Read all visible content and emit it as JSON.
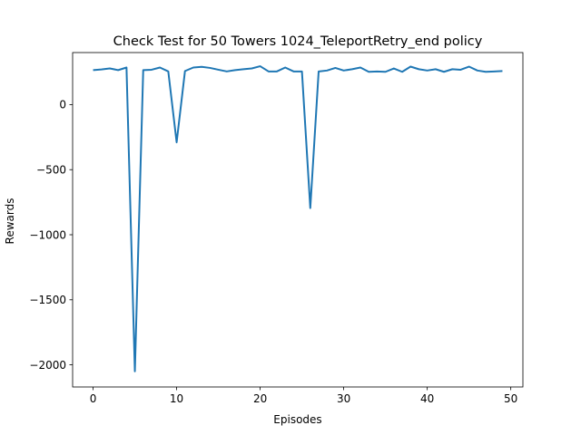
{
  "chart_data": {
    "type": "line",
    "title": "Check Test for 50 Towers 1024_TeleportRetry_end policy",
    "xlabel": "Episodes",
    "ylabel": "Rewards",
    "xlim": [
      -2.45,
      51.45
    ],
    "ylim": [
      -2170,
      400
    ],
    "xticks": [
      0,
      10,
      20,
      30,
      40,
      50
    ],
    "yticks": [
      0,
      -500,
      -1000,
      -1500,
      -2000
    ],
    "xtick_labels": [
      "0",
      "10",
      "20",
      "30",
      "40",
      "50"
    ],
    "ytick_labels": [
      "0",
      "−500",
      "−1000",
      "−1500",
      "−2000"
    ],
    "grid": false,
    "color": "#1f77b4",
    "series": [
      {
        "x": [
          0,
          1,
          2,
          3,
          4,
          5,
          6,
          7,
          8,
          9,
          10,
          11,
          12,
          13,
          14,
          15,
          16,
          17,
          18,
          19,
          20,
          21,
          22,
          23,
          24,
          25,
          26,
          27,
          28,
          29,
          30,
          31,
          32,
          33,
          34,
          35,
          36,
          37,
          38,
          39,
          40,
          41,
          42,
          43,
          44,
          45,
          46,
          47,
          48,
          49
        ],
        "values": [
          265,
          270,
          278,
          265,
          285,
          -2050,
          265,
          268,
          285,
          255,
          -290,
          258,
          285,
          290,
          282,
          268,
          255,
          265,
          272,
          278,
          295,
          255,
          255,
          285,
          255,
          255,
          -795,
          255,
          262,
          282,
          262,
          272,
          285,
          252,
          255,
          252,
          278,
          252,
          292,
          272,
          262,
          272,
          252,
          272,
          268,
          292,
          262,
          252,
          255,
          258
        ]
      }
    ]
  }
}
